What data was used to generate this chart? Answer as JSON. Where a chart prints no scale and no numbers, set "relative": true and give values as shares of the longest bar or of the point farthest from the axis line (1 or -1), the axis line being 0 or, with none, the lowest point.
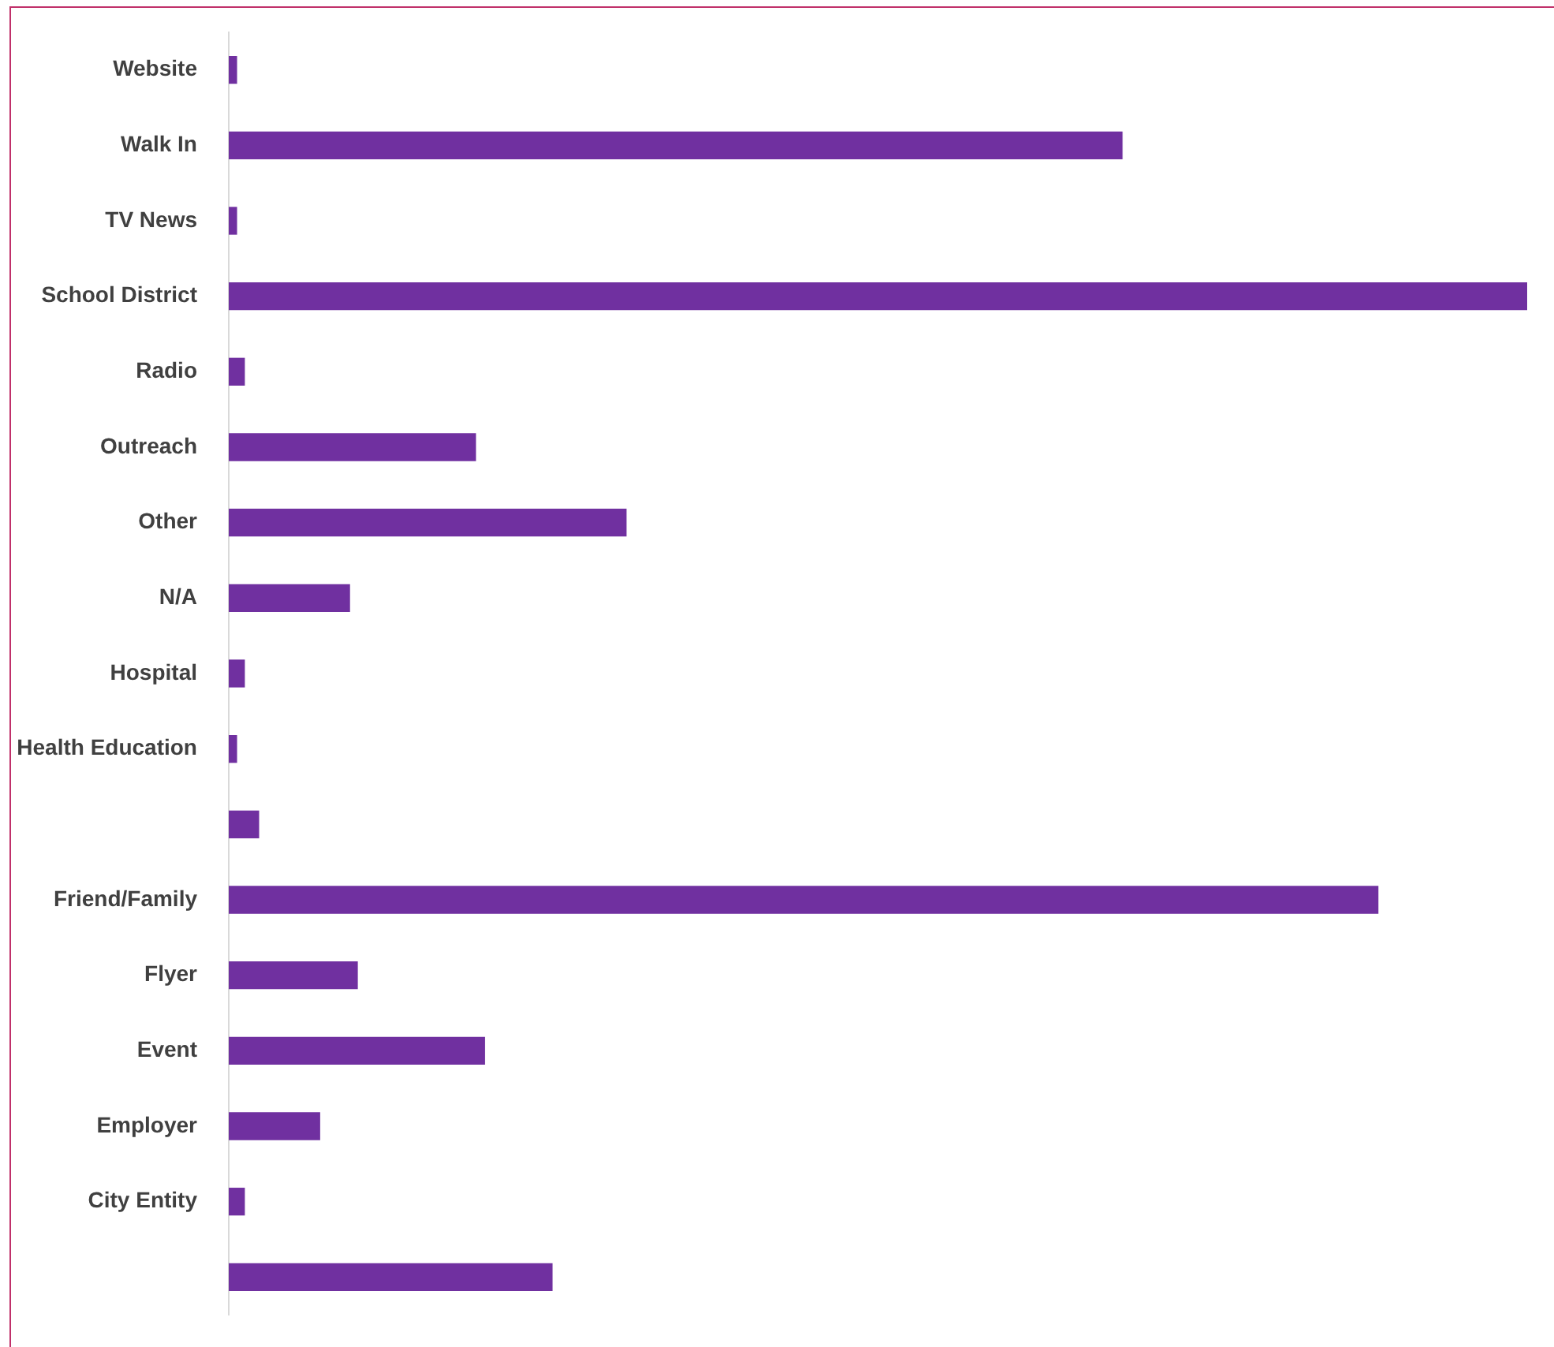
{
  "chart_data": {
    "type": "bar",
    "orientation": "horizontal",
    "relative": true,
    "categories": [
      "Website",
      "Walk In",
      "TV News",
      "School District",
      "Radio",
      "Outreach",
      "Other",
      "N/A",
      "Hospital",
      "Health Education",
      null,
      "Friend/Family",
      "Flyer",
      "Event",
      "Employer",
      "City Entity",
      null
    ],
    "values": [
      0.006,
      0.688,
      0.006,
      1,
      0.012,
      0.19,
      0.306,
      0.093,
      0.012,
      0.006,
      0.023,
      0.885,
      0.099,
      0.197,
      0.07,
      0.012,
      0.249
    ],
    "color": "#7030a0",
    "legend": false
  }
}
